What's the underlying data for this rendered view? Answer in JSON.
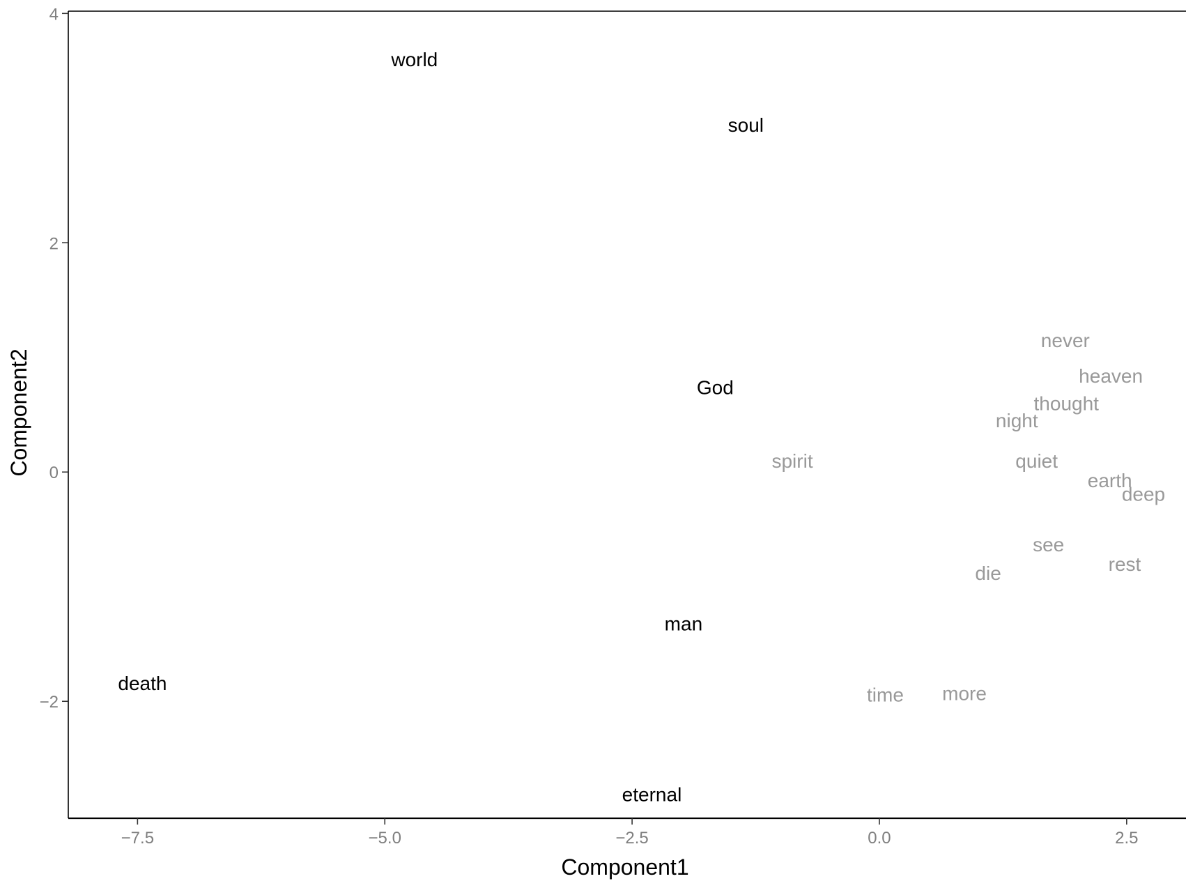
{
  "chart_data": {
    "type": "scatter",
    "title": "",
    "xlabel": "Component1",
    "ylabel": "Component2",
    "xlim": [
      -8.2,
      3.1
    ],
    "ylim": [
      -3.02,
      4.02
    ],
    "xticks": [
      -7.5,
      -5.0,
      -2.5,
      0.0,
      2.5
    ],
    "xtick_labels": [
      "−7.5",
      "−5.0",
      "−2.5",
      "0.0",
      "2.5"
    ],
    "yticks": [
      -2,
      0,
      2,
      4
    ],
    "ytick_labels": [
      "−2",
      "0",
      "2",
      "4"
    ],
    "grid": false,
    "points": [
      {
        "label": "world",
        "x": -4.7,
        "y": 3.6,
        "color": "#000000"
      },
      {
        "label": "soul",
        "x": -1.35,
        "y": 3.03,
        "color": "#000000"
      },
      {
        "label": "God",
        "x": -1.66,
        "y": 0.74,
        "color": "#000000"
      },
      {
        "label": "man",
        "x": -1.98,
        "y": -1.32,
        "color": "#000000"
      },
      {
        "label": "death",
        "x": -7.45,
        "y": -1.84,
        "color": "#000000"
      },
      {
        "label": "eternal",
        "x": -2.3,
        "y": -2.81,
        "color": "#000000"
      },
      {
        "label": "spirit",
        "x": -0.88,
        "y": 0.1,
        "color": "#999999"
      },
      {
        "label": "never",
        "x": 1.88,
        "y": 1.15,
        "color": "#999999"
      },
      {
        "label": "heaven",
        "x": 2.34,
        "y": 0.84,
        "color": "#999999"
      },
      {
        "label": "thought",
        "x": 1.89,
        "y": 0.6,
        "color": "#999999"
      },
      {
        "label": "night",
        "x": 1.39,
        "y": 0.45,
        "color": "#999999"
      },
      {
        "label": "quiet",
        "x": 1.59,
        "y": 0.1,
        "color": "#999999"
      },
      {
        "label": "earth",
        "x": 2.33,
        "y": -0.07,
        "color": "#999999"
      },
      {
        "label": "deep",
        "x": 2.67,
        "y": -0.19,
        "color": "#999999"
      },
      {
        "label": "see",
        "x": 1.71,
        "y": -0.63,
        "color": "#999999"
      },
      {
        "label": "rest",
        "x": 2.48,
        "y": -0.8,
        "color": "#999999"
      },
      {
        "label": "die",
        "x": 1.1,
        "y": -0.88,
        "color": "#999999"
      },
      {
        "label": "time",
        "x": 0.06,
        "y": -1.94,
        "color": "#999999"
      },
      {
        "label": "more",
        "x": 0.86,
        "y": -1.93,
        "color": "#999999"
      }
    ]
  }
}
